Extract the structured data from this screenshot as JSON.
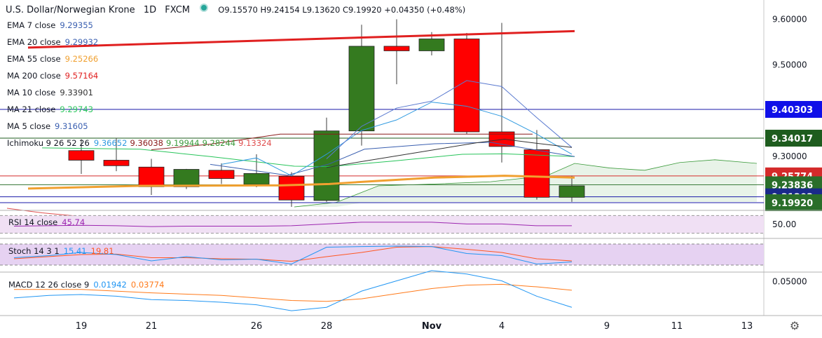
{
  "header": {
    "symbol": "U.S. Dollar/Norwegian Krone",
    "interval": "1D",
    "source": "FXCM",
    "ohlc_text": "O9.15570 H9.24154 L9.13620 C9.19920 +0.04350 (+0.48%)"
  },
  "indicators": [
    {
      "label": "EMA 7 close",
      "values": [
        "9.29355"
      ],
      "colors": [
        "#3a5fb0"
      ]
    },
    {
      "label": "EMA 20 close",
      "values": [
        "9.29932"
      ],
      "colors": [
        "#3a5fb0"
      ]
    },
    {
      "label": "EMA 55 close",
      "values": [
        "9.25266"
      ],
      "colors": [
        "#f0a030"
      ]
    },
    {
      "label": "MA 200 close",
      "values": [
        "9.57164"
      ],
      "colors": [
        "#e02020"
      ]
    },
    {
      "label": "MA 10 close",
      "values": [
        "9.33901"
      ],
      "colors": [
        "#333333"
      ]
    },
    {
      "label": "MA 21 close",
      "values": [
        "9.29743"
      ],
      "colors": [
        "#27c45a"
      ]
    },
    {
      "label": "MA 5 close",
      "values": [
        "9.31605"
      ],
      "colors": [
        "#3a5fb0"
      ]
    },
    {
      "label": "Ichimoku 9 26 52 26",
      "values": [
        "9.36652",
        "9.36038",
        "9.19944",
        "9.28244",
        "9.13324"
      ],
      "colors": [
        "#2f9ae0",
        "#8a1a1a",
        "#3a9a3a",
        "#3a9a3a",
        "#e05050"
      ]
    }
  ],
  "sub_panes": {
    "rsi": {
      "label": "RSI 14 close",
      "value": "45.74",
      "axis_label": "50.00"
    },
    "stoch": {
      "label": "Stoch 14 3 1",
      "k": "15.41",
      "d": "19.81"
    },
    "macd": {
      "label": "MACD 12 26 close 9",
      "macd": "0.01942",
      "signal": "0.03774",
      "axis_label": "0.05000"
    }
  },
  "colors": {
    "up": "#347a1f",
    "down": "#ff0000",
    "ema55": "#f0a030",
    "ma200": "#e02020",
    "rsi": "#9c27b0",
    "stoch_k": "#2196f3",
    "stoch_d": "#ff5722",
    "macd": "#2196f3",
    "signal": "#ff7a1a",
    "h_blue": "#1a1aa8",
    "h_green": "#1e5c1e"
  },
  "chart_data": {
    "type": "candlestick",
    "x_ticks": [
      "19",
      "21",
      "26",
      "28",
      "Nov",
      "4",
      "9",
      "11",
      "13"
    ],
    "y_ticks": [
      "9.60000",
      "9.50000",
      "9.30000"
    ],
    "ylim": [
      9.187,
      9.616
    ],
    "price_labels": [
      {
        "value": "9.40303",
        "bg": "#1010e8"
      },
      {
        "value": "9.34017",
        "bg": "#1e5c1e"
      },
      {
        "value": "9.25774",
        "bg": "#d42a2a"
      },
      {
        "value": "9.23836",
        "bg": "#2a6e2a"
      },
      {
        "value": "9.21203",
        "bg": "#1a2a8a"
      },
      {
        "value": "9.19920",
        "bg": "#2a6e2a"
      }
    ],
    "horizontal_lines": [
      {
        "value": 9.40303,
        "color": "#1a1aa8"
      },
      {
        "value": 9.34017,
        "color": "#1e5c1e"
      },
      {
        "value": 9.25774,
        "color": "#d42a2a"
      },
      {
        "value": 9.23836,
        "color": "#3a7a3a"
      },
      {
        "value": 9.21203,
        "color": "#1a1aa8"
      },
      {
        "value": 9.1992,
        "color": "#1a1aa8"
      }
    ],
    "candles": [
      {
        "x": 116,
        "o": 9.313,
        "h": 9.338,
        "l": 9.262,
        "c": 9.292
      },
      {
        "x": 166,
        "o": 9.292,
        "h": 9.341,
        "l": 9.268,
        "c": 9.28
      },
      {
        "x": 216,
        "o": 9.277,
        "h": 9.295,
        "l": 9.216,
        "c": 9.234
      },
      {
        "x": 266,
        "o": 9.234,
        "h": 9.273,
        "l": 9.229,
        "c": 9.272
      },
      {
        "x": 316,
        "o": 9.27,
        "h": 9.285,
        "l": 9.24,
        "c": 9.252
      },
      {
        "x": 366,
        "o": 9.239,
        "h": 9.305,
        "l": 9.233,
        "c": 9.263
      },
      {
        "x": 416,
        "o": 9.257,
        "h": 9.266,
        "l": 9.19,
        "c": 9.205
      },
      {
        "x": 466,
        "o": 9.204,
        "h": 9.385,
        "l": 9.201,
        "c": 9.356
      },
      {
        "x": 516,
        "o": 9.356,
        "h": 9.588,
        "l": 9.324,
        "c": 9.541
      },
      {
        "x": 566,
        "o": 9.541,
        "h": 9.6,
        "l": 9.458,
        "c": 9.531
      },
      {
        "x": 616,
        "o": 9.531,
        "h": 9.572,
        "l": 9.521,
        "c": 9.557
      },
      {
        "x": 666,
        "o": 9.557,
        "h": 9.57,
        "l": 9.349,
        "c": 9.354
      },
      {
        "x": 716,
        "o": 9.354,
        "h": 9.592,
        "l": 9.287,
        "c": 9.322
      },
      {
        "x": 766,
        "o": 9.315,
        "h": 9.358,
        "l": 9.206,
        "c": 9.211
      },
      {
        "x": 816,
        "o": 9.211,
        "h": 9.258,
        "l": 9.201,
        "c": 9.236
      }
    ],
    "series": [
      {
        "color": "#e02020",
        "points": [
          [
            40,
            9.538
          ],
          [
            820,
            9.574
          ]
        ]
      },
      {
        "color": "#f0a030",
        "points": [
          [
            40,
            9.23
          ],
          [
            200,
            9.236
          ],
          [
            400,
            9.237
          ],
          [
            470,
            9.24
          ],
          [
            520,
            9.245
          ],
          [
            620,
            9.254
          ],
          [
            720,
            9.258
          ],
          [
            820,
            9.254
          ]
        ]
      },
      {
        "color": "#27c45a",
        "points": [
          [
            60,
            9.319
          ],
          [
            200,
            9.316
          ],
          [
            300,
            9.3
          ],
          [
            420,
            9.279
          ],
          [
            470,
            9.278
          ],
          [
            560,
            9.29
          ],
          [
            660,
            9.305
          ],
          [
            720,
            9.306
          ],
          [
            820,
            9.3
          ]
        ]
      },
      {
        "color": "#3a5fb0",
        "points": [
          [
            300,
            9.283
          ],
          [
            410,
            9.259
          ],
          [
            470,
            9.284
          ],
          [
            520,
            9.316
          ],
          [
            620,
            9.328
          ],
          [
            700,
            9.331
          ],
          [
            820,
            9.3
          ]
        ]
      },
      {
        "color": "#2f9ae0",
        "points": [
          [
            316,
            9.283
          ],
          [
            366,
            9.297
          ],
          [
            416,
            9.258
          ],
          [
            466,
            9.305
          ],
          [
            516,
            9.357
          ],
          [
            566,
            9.38
          ],
          [
            616,
            9.419
          ],
          [
            666,
            9.41
          ],
          [
            716,
            9.388
          ],
          [
            766,
            9.349
          ],
          [
            816,
            9.305
          ]
        ]
      },
      {
        "color": "#8a1a1a",
        "points": [
          [
            216,
            9.315
          ],
          [
            300,
            9.327
          ],
          [
            400,
            9.349
          ],
          [
            720,
            9.349
          ],
          [
            760,
            9.349
          ]
        ]
      },
      {
        "color": "#5a7ad0",
        "points": [
          [
            466,
            9.295
          ],
          [
            516,
            9.366
          ],
          [
            566,
            9.406
          ],
          [
            616,
            9.421
          ],
          [
            666,
            9.466
          ],
          [
            716,
            9.453
          ],
          [
            766,
            9.385
          ],
          [
            816,
            9.32
          ]
        ]
      },
      {
        "color": "#333333",
        "points": [
          [
            466,
            9.276
          ],
          [
            520,
            9.29
          ],
          [
            600,
            9.31
          ],
          [
            680,
            9.33
          ],
          [
            720,
            9.338
          ],
          [
            760,
            9.33
          ],
          [
            816,
            9.32
          ]
        ]
      }
    ],
    "cloud": {
      "color": "#3a9a3a",
      "fill": "#e8f3e8",
      "top": [
        [
          420,
          9.19
        ],
        [
          480,
          9.2
        ],
        [
          540,
          9.236
        ],
        [
          620,
          9.24
        ],
        [
          700,
          9.245
        ],
        [
          780,
          9.258
        ],
        [
          820,
          9.285
        ],
        [
          870,
          9.275
        ],
        [
          920,
          9.27
        ],
        [
          970,
          9.287
        ],
        [
          1020,
          9.293
        ],
        [
          1080,
          9.285
        ]
      ],
      "bottom": [
        [
          480,
          9.19
        ],
        [
          520,
          9.2
        ],
        [
          580,
          9.201
        ],
        [
          700,
          9.201
        ],
        [
          820,
          9.201
        ],
        [
          1080,
          9.201
        ]
      ]
    },
    "lagging": {
      "color": "#e05050",
      "points": [
        [
          10,
          9.187
        ],
        [
          60,
          9.177
        ],
        [
          110,
          9.17
        ],
        [
          200,
          9.165
        ],
        [
          370,
          9.165
        ]
      ]
    },
    "rsi": {
      "color": "#9c27b0",
      "points": [
        [
          20,
          46
        ],
        [
          116,
          48
        ],
        [
          166,
          47
        ],
        [
          216,
          45
        ],
        [
          266,
          46
        ],
        [
          316,
          46
        ],
        [
          366,
          46
        ],
        [
          416,
          47
        ],
        [
          466,
          51
        ],
        [
          516,
          55
        ],
        [
          566,
          55
        ],
        [
          616,
          55
        ],
        [
          666,
          51
        ],
        [
          716,
          51
        ],
        [
          766,
          47
        ],
        [
          816,
          47
        ]
      ]
    },
    "stoch_k": {
      "color": "#2196f3",
      "points": [
        [
          20,
          35
        ],
        [
          70,
          45
        ],
        [
          116,
          60
        ],
        [
          166,
          50
        ],
        [
          216,
          20
        ],
        [
          266,
          40
        ],
        [
          316,
          25
        ],
        [
          366,
          28
        ],
        [
          416,
          5
        ],
        [
          466,
          85
        ],
        [
          516,
          88
        ],
        [
          566,
          90
        ],
        [
          616,
          88
        ],
        [
          666,
          55
        ],
        [
          716,
          45
        ],
        [
          766,
          5
        ],
        [
          816,
          15
        ]
      ]
    },
    "stoch_d": {
      "color": "#ff5722",
      "points": [
        [
          20,
          30
        ],
        [
          116,
          50
        ],
        [
          166,
          52
        ],
        [
          216,
          35
        ],
        [
          266,
          35
        ],
        [
          316,
          30
        ],
        [
          366,
          28
        ],
        [
          416,
          18
        ],
        [
          466,
          40
        ],
        [
          516,
          60
        ],
        [
          566,
          85
        ],
        [
          616,
          88
        ],
        [
          666,
          75
        ],
        [
          716,
          60
        ],
        [
          766,
          30
        ],
        [
          816,
          20
        ]
      ]
    },
    "macd": {
      "color": "#2196f3",
      "points": [
        [
          20,
          0.031
        ],
        [
          70,
          0.034
        ],
        [
          116,
          0.035
        ],
        [
          166,
          0.033
        ],
        [
          216,
          0.029
        ],
        [
          266,
          0.028
        ],
        [
          316,
          0.026
        ],
        [
          366,
          0.023
        ],
        [
          416,
          0.016
        ],
        [
          466,
          0.02
        ],
        [
          516,
          0.039
        ],
        [
          566,
          0.051
        ],
        [
          616,
          0.063
        ],
        [
          666,
          0.059
        ],
        [
          716,
          0.051
        ],
        [
          766,
          0.033
        ],
        [
          816,
          0.02
        ]
      ]
    },
    "signal": {
      "color": "#ff7a1a",
      "points": [
        [
          20,
          0.041
        ],
        [
          116,
          0.041
        ],
        [
          216,
          0.037
        ],
        [
          316,
          0.034
        ],
        [
          416,
          0.028
        ],
        [
          466,
          0.027
        ],
        [
          516,
          0.03
        ],
        [
          566,
          0.036
        ],
        [
          616,
          0.042
        ],
        [
          666,
          0.046
        ],
        [
          716,
          0.047
        ],
        [
          766,
          0.044
        ],
        [
          816,
          0.04
        ]
      ]
    }
  }
}
